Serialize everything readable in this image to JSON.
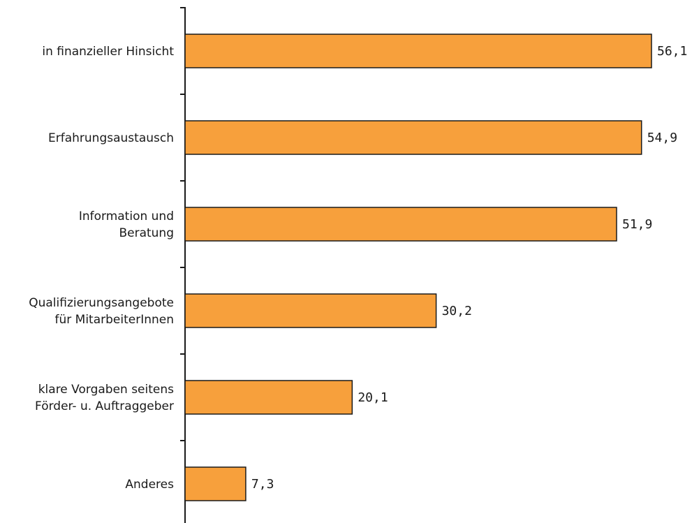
{
  "chart_data": {
    "type": "bar",
    "orientation": "horizontal",
    "categories": [
      [
        "in finanzieller Hinsicht"
      ],
      [
        "Erfahrungsaustausch"
      ],
      [
        "Information und",
        "Beratung"
      ],
      [
        "Qualifizierungsangebote",
        "für MitarbeiterInnen"
      ],
      [
        "klare Vorgaben seitens",
        "Förder- u. Auftraggeber"
      ],
      [
        "Anderes"
      ]
    ],
    "values": [
      56.1,
      54.9,
      51.9,
      30.2,
      20.1,
      7.3
    ],
    "value_labels": [
      "56,1",
      "54,9",
      "51,9",
      "30,2",
      "20,1",
      "7,3"
    ],
    "xlim": [
      0,
      62
    ],
    "bar_color": "#f7a03c",
    "bar_stroke": "#1a1a1a",
    "grid": false,
    "legend": "none"
  }
}
